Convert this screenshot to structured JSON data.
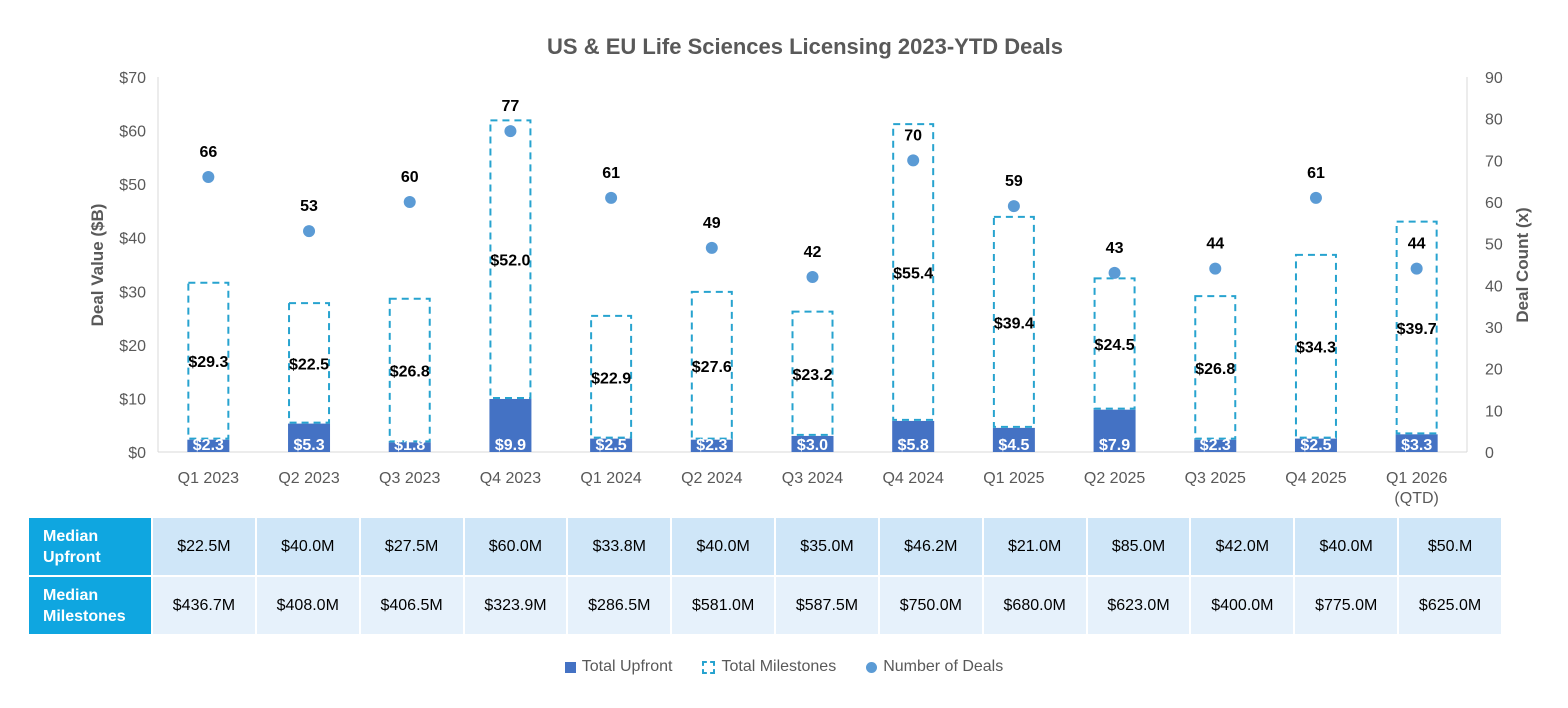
{
  "chart_data": {
    "type": "bar",
    "title": "US & EU Life Sciences Licensing 2023-YTD Deals",
    "ylabel": "Deal Value ($B)",
    "y2label": "Deal Count (x)",
    "ylim": [
      0,
      70
    ],
    "y2lim": [
      0,
      90
    ],
    "yticks": [
      "$0",
      "$10",
      "$20",
      "$30",
      "$40",
      "$50",
      "$60",
      "$70"
    ],
    "y2ticks": [
      "0",
      "10",
      "20",
      "30",
      "40",
      "50",
      "60",
      "70",
      "80",
      "90"
    ],
    "categories": [
      "Q1 2023",
      "Q2 2023",
      "Q3 2023",
      "Q4 2023",
      "Q1 2024",
      "Q2 2024",
      "Q3 2024",
      "Q4 2024",
      "Q1 2025",
      "Q2 2025",
      "Q3 2025",
      "Q4 2025",
      "Q1 2026\n(QTD)"
    ],
    "stacked": true,
    "series": [
      {
        "name": "Total Upfront",
        "type": "bar",
        "color": "#4472c4",
        "axis": "left",
        "values": [
          2.3,
          5.3,
          1.8,
          9.9,
          2.5,
          2.3,
          3.0,
          5.8,
          4.5,
          7.9,
          2.3,
          2.5,
          3.3
        ],
        "labels": [
          "$2.3",
          "$5.3",
          "$1.8",
          "$9.9",
          "$2.5",
          "$2.3",
          "$3.0",
          "$5.8",
          "$4.5",
          "$7.9",
          "$2.3",
          "$2.5",
          "$3.3"
        ]
      },
      {
        "name": "Total Milestones",
        "type": "bar",
        "style": "dashed-outline",
        "color": "#27a3cf",
        "axis": "left",
        "values": [
          29.3,
          22.5,
          26.8,
          52.0,
          22.9,
          27.6,
          23.2,
          55.4,
          39.4,
          24.5,
          26.8,
          34.3,
          39.7
        ],
        "labels": [
          "$29.3",
          "$22.5",
          "$26.8",
          "$52.0",
          "$22.9",
          "$27.6",
          "$23.2",
          "$55.4",
          "$39.4",
          "$24.5",
          "$26.8",
          "$34.3",
          "$39.7"
        ]
      },
      {
        "name": "Number of Deals",
        "type": "scatter",
        "color": "#5b9bd5",
        "axis": "right",
        "values": [
          66,
          53,
          60,
          77,
          61,
          49,
          42,
          70,
          59,
          43,
          44,
          61,
          44
        ],
        "labels": [
          "66",
          "53",
          "60",
          "77",
          "61",
          "49",
          "42",
          "70",
          "59",
          "43",
          "44",
          "61",
          "44"
        ]
      }
    ],
    "legend_position": "bottom",
    "grid": false
  },
  "table": {
    "rows": [
      {
        "label": "Median\nUpfront",
        "values": [
          "$22.5M",
          "$40.0M",
          "$27.5M",
          "$60.0M",
          "$33.8M",
          "$40.0M",
          "$35.0M",
          "$46.2M",
          "$21.0M",
          "$85.0M",
          "$42.0M",
          "$40.0M",
          "$50.M"
        ]
      },
      {
        "label": "Median\nMilestones",
        "values": [
          "$436.7M",
          "$408.0M",
          "$406.5M",
          "$323.9M",
          "$286.5M",
          "$581.0M",
          "$587.5M",
          "$750.0M",
          "$680.0M",
          "$623.0M",
          "$400.0M",
          "$775.0M",
          "$625.0M"
        ]
      }
    ]
  },
  "legend": {
    "upfront": "Total Upfront",
    "milestones": "Total Milestones",
    "deals": "Number of Deals"
  }
}
